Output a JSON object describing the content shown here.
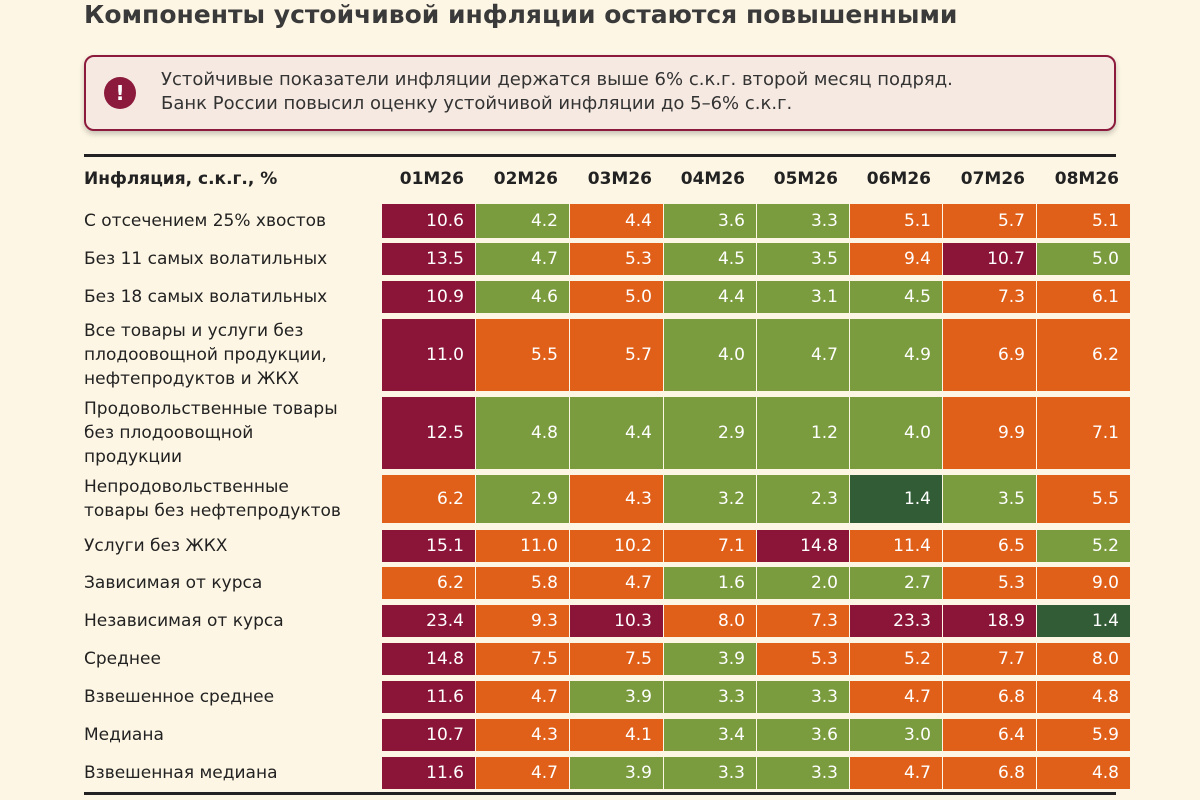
{
  "title": "Компоненты устойчивой инфляции остаются повышенными",
  "alert": {
    "icon": "!",
    "icon_name": "exclamation-circle-icon",
    "lines": [
      "Устойчивые показатели инфляции держатся выше 6% с.к.г. второй месяц подряд.",
      "Банк России повысил оценку устойчивой инфляции до 5–6% с.к.г."
    ]
  },
  "colors": {
    "burgundy": "#8a1538",
    "orange": "#e0601a",
    "green": "#7a9c3e",
    "dark_green": "#325c36",
    "background": "#fdf6e4",
    "alert_border": "#8c1a3c"
  },
  "chart_data": {
    "type": "heatmap",
    "title": "Компоненты устойчивой инфляции остаются повышенными",
    "row_header": "Инфляция, с.к.г., %",
    "columns": [
      "01М26",
      "02М26",
      "03М26",
      "04М26",
      "05М26",
      "06М26",
      "07М26",
      "08М26"
    ],
    "rows": [
      {
        "label": [
          "С отсечением 25% хвостов"
        ],
        "values": [
          "10.6",
          "4.2",
          "4.4",
          "3.6",
          "3.3",
          "5.1",
          "5.7",
          "5.1"
        ],
        "colors": [
          "burgundy",
          "green",
          "orange",
          "green",
          "green",
          "orange",
          "orange",
          "orange"
        ]
      },
      {
        "label": [
          "Без 11 самых волатильных"
        ],
        "values": [
          "13.5",
          "4.7",
          "5.3",
          "4.5",
          "3.5",
          "9.4",
          "10.7",
          "5.0"
        ],
        "colors": [
          "burgundy",
          "green",
          "orange",
          "green",
          "green",
          "orange",
          "burgundy",
          "green"
        ]
      },
      {
        "label": [
          "Без 18 самых волатильных"
        ],
        "values": [
          "10.9",
          "4.6",
          "5.0",
          "4.4",
          "3.1",
          "4.5",
          "7.3",
          "6.1"
        ],
        "colors": [
          "burgundy",
          "green",
          "orange",
          "green",
          "green",
          "green",
          "orange",
          "orange"
        ]
      },
      {
        "label": [
          "Все товары и услуги без",
          "плодоовощной продукции,",
          "нефтепродуктов и ЖКХ"
        ],
        "values": [
          "11.0",
          "5.5",
          "5.7",
          "4.0",
          "4.7",
          "4.9",
          "6.9",
          "6.2"
        ],
        "colors": [
          "burgundy",
          "orange",
          "orange",
          "green",
          "green",
          "green",
          "orange",
          "orange"
        ]
      },
      {
        "label": [
          "Продовольственные товары",
          "без плодоовощной",
          "продукции"
        ],
        "values": [
          "12.5",
          "4.8",
          "4.4",
          "2.9",
          "1.2",
          "4.0",
          "9.9",
          "7.1"
        ],
        "colors": [
          "burgundy",
          "green",
          "green",
          "green",
          "green",
          "green",
          "orange",
          "orange"
        ]
      },
      {
        "label": [
          "Непродовольственные",
          "товары без нефтепродуктов"
        ],
        "values": [
          "6.2",
          "2.9",
          "4.3",
          "3.2",
          "2.3",
          "1.4",
          "3.5",
          "5.5"
        ],
        "colors": [
          "orange",
          "green",
          "orange",
          "green",
          "green",
          "dark_green",
          "green",
          "orange"
        ]
      },
      {
        "label": [
          "Услуги без ЖКХ"
        ],
        "values": [
          "15.1",
          "11.0",
          "10.2",
          "7.1",
          "14.8",
          "11.4",
          "6.5",
          "5.2"
        ],
        "colors": [
          "burgundy",
          "orange",
          "orange",
          "orange",
          "burgundy",
          "orange",
          "orange",
          "green"
        ]
      },
      {
        "label": [
          "Зависимая от курса"
        ],
        "values": [
          "6.2",
          "5.8",
          "4.7",
          "1.6",
          "2.0",
          "2.7",
          "5.3",
          "9.0"
        ],
        "colors": [
          "orange",
          "orange",
          "orange",
          "green",
          "green",
          "green",
          "orange",
          "orange"
        ]
      },
      {
        "label": [
          "Независимая от курса"
        ],
        "values": [
          "23.4",
          "9.3",
          "10.3",
          "8.0",
          "7.3",
          "23.3",
          "18.9",
          "1.4"
        ],
        "colors": [
          "burgundy",
          "orange",
          "burgundy",
          "orange",
          "orange",
          "burgundy",
          "burgundy",
          "dark_green"
        ]
      },
      {
        "label": [
          "Среднее"
        ],
        "values": [
          "14.8",
          "7.5",
          "7.5",
          "3.9",
          "5.3",
          "5.2",
          "7.7",
          "8.0"
        ],
        "colors": [
          "burgundy",
          "orange",
          "orange",
          "green",
          "orange",
          "orange",
          "orange",
          "orange"
        ]
      },
      {
        "label": [
          "Взвешенное среднее"
        ],
        "values": [
          "11.6",
          "4.7",
          "3.9",
          "3.3",
          "3.3",
          "4.7",
          "6.8",
          "4.8"
        ],
        "colors": [
          "burgundy",
          "orange",
          "green",
          "green",
          "green",
          "orange",
          "orange",
          "orange"
        ]
      },
      {
        "label": [
          "Медиана"
        ],
        "values": [
          "10.7",
          "4.3",
          "4.1",
          "3.4",
          "3.6",
          "3.0",
          "6.4",
          "5.9"
        ],
        "colors": [
          "burgundy",
          "orange",
          "orange",
          "green",
          "green",
          "green",
          "orange",
          "orange"
        ]
      },
      {
        "label": [
          "Взвешенная медиана"
        ],
        "values": [
          "11.6",
          "4.7",
          "3.9",
          "3.3",
          "3.3",
          "4.7",
          "6.8",
          "4.8"
        ],
        "colors": [
          "burgundy",
          "orange",
          "green",
          "green",
          "green",
          "orange",
          "orange",
          "orange"
        ]
      }
    ]
  }
}
